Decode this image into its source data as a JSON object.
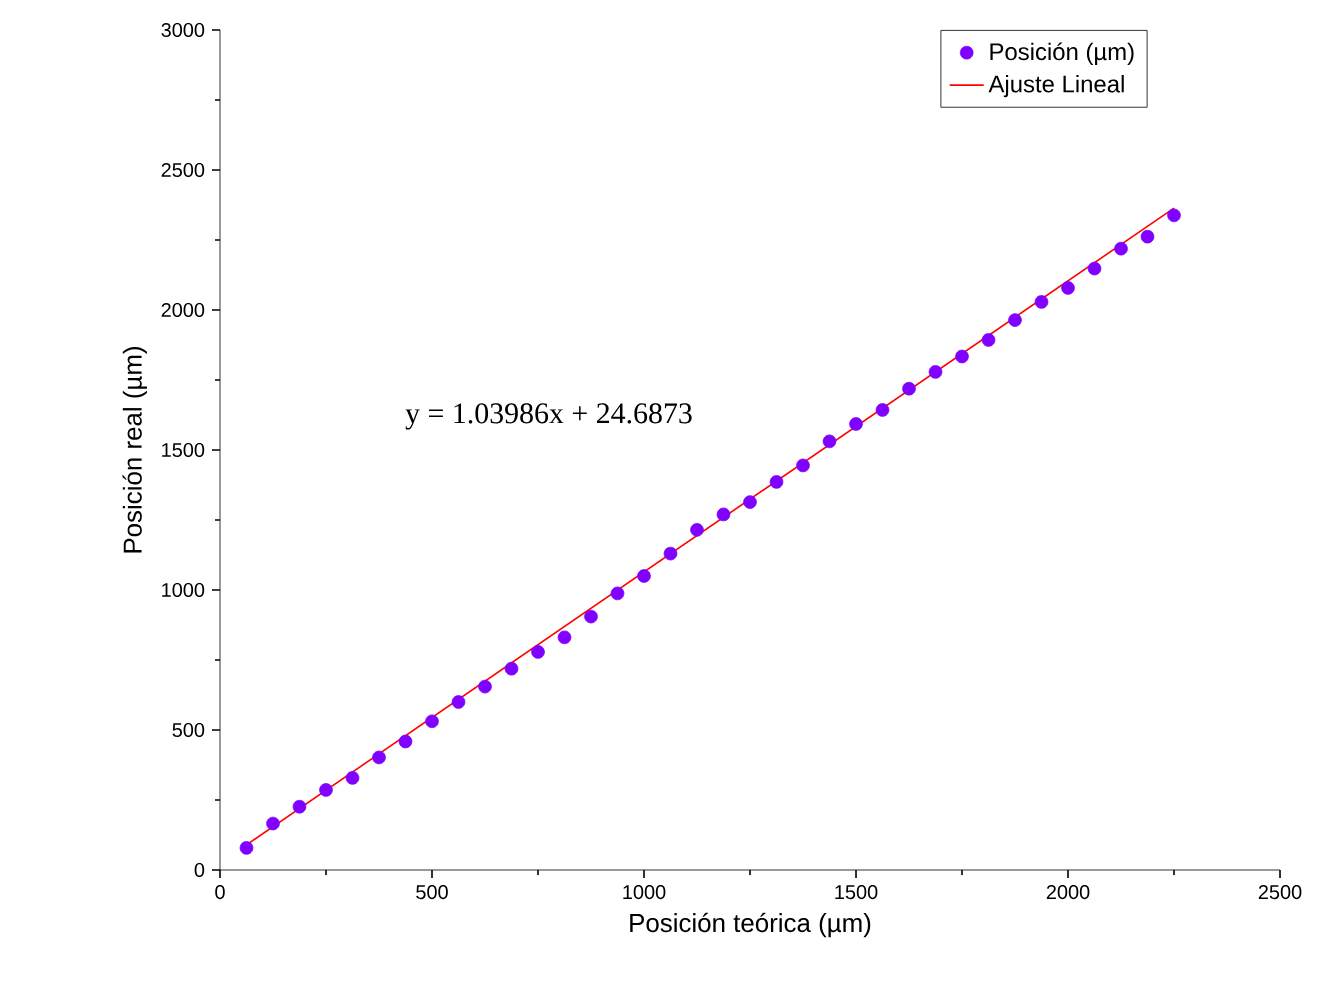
{
  "chart_data": {
    "type": "scatter",
    "xlabel": "Posición teórica (µm)",
    "ylabel": "Posición real  (µm)",
    "xlim": [
      0,
      2500
    ],
    "ylim": [
      0,
      3000
    ],
    "xticks": [
      0,
      500,
      1000,
      1500,
      2000,
      2500
    ],
    "yticks": [
      0,
      500,
      1000,
      1500,
      2000,
      2500,
      3000
    ],
    "grid": false,
    "legend": "top right",
    "annotations": [
      "y = 1.03986x + 24.6873"
    ],
    "series": [
      {
        "name": "Posición (µm)",
        "marker": "circle",
        "color": "#7f00ff",
        "x": [
          62.5,
          125,
          187.5,
          250,
          312.5,
          375,
          437.5,
          500,
          562.5,
          625,
          687.5,
          750,
          812.5,
          875,
          937.5,
          1000,
          1062.5,
          1125,
          1187.5,
          1250,
          1312.5,
          1375,
          1437.5,
          1500,
          1562.5,
          1625,
          1687.5,
          1750,
          1812.5,
          1875,
          1937.5,
          2000,
          2062.5,
          2125,
          2187.5,
          2250
        ],
        "values": [
          79,
          166,
          226,
          286,
          329,
          402,
          459,
          531,
          600,
          655,
          719,
          779,
          831,
          905,
          988,
          1050,
          1130,
          1215,
          1270,
          1314,
          1386,
          1445,
          1531,
          1593,
          1643,
          1719,
          1779,
          1834,
          1893,
          1964,
          2029,
          2079,
          2148,
          2219,
          2262,
          2338
        ]
      },
      {
        "name": "Ajuste Lineal",
        "type": "line",
        "marker": "none",
        "color": "#ff0000",
        "x": [
          62.5,
          2250
        ],
        "values": [
          90,
          2364
        ]
      }
    ]
  }
}
